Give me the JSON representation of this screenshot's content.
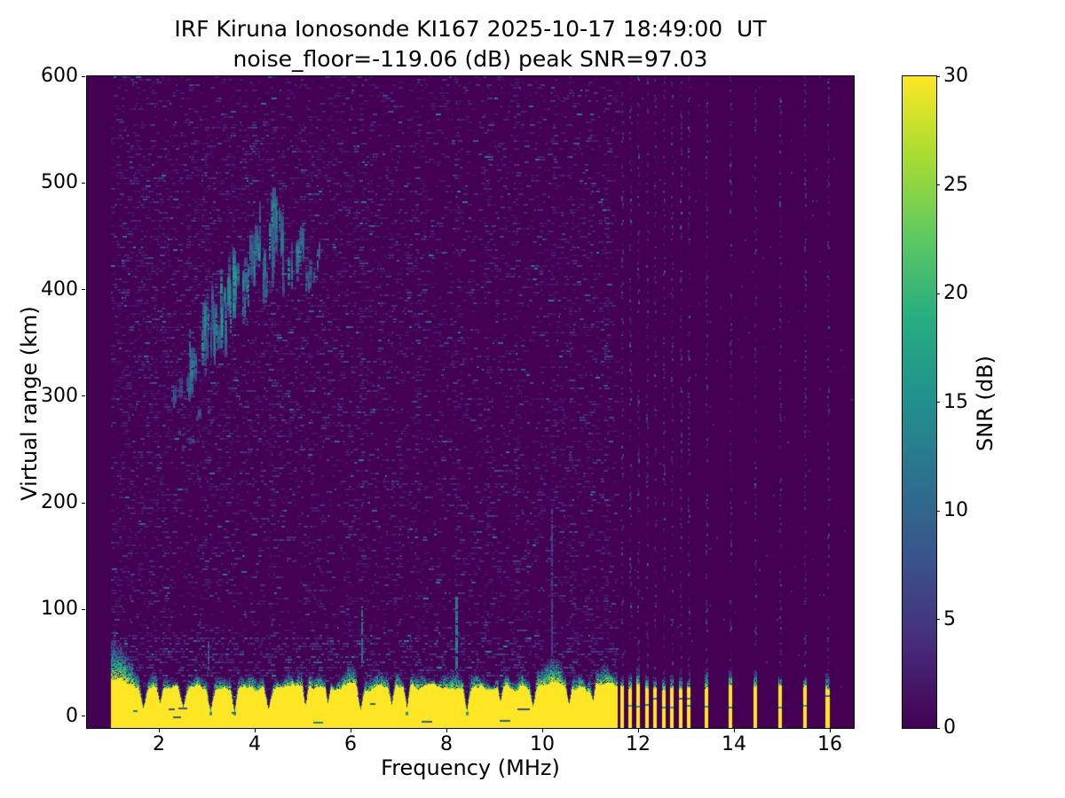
{
  "chart_data": {
    "type": "heatmap",
    "title_line1": "IRF Kiruna Ionosonde KI167 2025-10-17 18:49:00  UT",
    "title_line2": "noise_floor=-119.06 (dB) peak SNR=97.03",
    "xlabel": "Frequency (MHz)",
    "ylabel": "Virtual range (km)",
    "colorbar_label": "SNR (dB)",
    "colormap": "viridis",
    "x_ticks": [
      2,
      4,
      6,
      8,
      10,
      12,
      14,
      16
    ],
    "y_ticks": [
      0,
      100,
      200,
      300,
      400,
      500,
      600
    ],
    "colorbar_ticks": [
      0,
      5,
      10,
      15,
      20,
      25,
      30
    ],
    "xlim": [
      0.5,
      16.5
    ],
    "ylim": [
      -11.2,
      600
    ],
    "clim": [
      0,
      30
    ],
    "noise_floor_db": -119.06,
    "peak_snr_db": 97.03,
    "render_seed": 1337,
    "features": {
      "sweep_start_mhz": 1.0,
      "continuous_sweep_end_mhz": 11.55,
      "ground_band": {
        "yellow_top_km": 27,
        "grad_thickness_km": 10,
        "bumps": [
          {
            "f": 1.12,
            "amp": 20,
            "sig": 0.25
          },
          {
            "f": 5.95,
            "amp": 8,
            "sig": 0.14
          },
          {
            "f": 8.2,
            "amp": 6,
            "sig": 0.09
          },
          {
            "f": 10.1,
            "amp": 11,
            "sig": 0.25
          },
          {
            "f": 11.35,
            "amp": 8,
            "sig": 0.15
          }
        ]
      },
      "band_notches": [
        {
          "f": 1.67,
          "w": 0.13,
          "depth": 6,
          "tip": false
        },
        {
          "f": 2.02,
          "w": 0.1,
          "depth": 12,
          "tip": false
        },
        {
          "f": 2.5,
          "w": 0.14,
          "depth": 8,
          "tip": false
        },
        {
          "f": 3.07,
          "w": 0.12,
          "depth": 4,
          "tip": true
        },
        {
          "f": 3.57,
          "w": 0.11,
          "depth": 3,
          "tip": true
        },
        {
          "f": 4.28,
          "w": 0.14,
          "depth": 6,
          "tip": false
        },
        {
          "f": 5.05,
          "w": 0.1,
          "depth": 9,
          "tip": false
        },
        {
          "f": 5.52,
          "w": 0.08,
          "depth": 12,
          "tip": false
        },
        {
          "f": 6.2,
          "w": 0.12,
          "depth": 5,
          "tip": false
        },
        {
          "f": 6.85,
          "w": 0.1,
          "depth": 10,
          "tip": false
        },
        {
          "f": 7.17,
          "w": 0.1,
          "depth": 7,
          "tip": true
        },
        {
          "f": 8.42,
          "w": 0.12,
          "depth": 4,
          "tip": true
        },
        {
          "f": 9.12,
          "w": 0.08,
          "depth": 12,
          "tip": false
        },
        {
          "f": 9.8,
          "w": 0.1,
          "depth": 8,
          "tip": false
        },
        {
          "f": 10.55,
          "w": 0.1,
          "depth": 10,
          "tip": false
        },
        {
          "f": 11.05,
          "w": 0.08,
          "depth": 13,
          "tip": false
        }
      ],
      "echo_trace_segments": [
        {
          "f0": 2.15,
          "f1": 2.62,
          "r0": 288,
          "r1": 318,
          "n": 12,
          "v0": 6,
          "v1": 12,
          "h0": 6,
          "h1": 20
        },
        {
          "f0": 2.62,
          "f1": 3.12,
          "r0": 306,
          "r1": 398,
          "n": 20,
          "v0": 8,
          "v1": 17,
          "h0": 14,
          "h1": 48
        },
        {
          "f0": 3.12,
          "f1": 3.6,
          "r0": 338,
          "r1": 430,
          "n": 20,
          "v0": 9,
          "v1": 18,
          "h0": 14,
          "h1": 55
        },
        {
          "f0": 3.72,
          "f1": 4.12,
          "r0": 372,
          "r1": 470,
          "n": 18,
          "v0": 8,
          "v1": 18,
          "h0": 14,
          "h1": 45
        },
        {
          "f0": 4.12,
          "f1": 4.58,
          "r0": 388,
          "r1": 498,
          "n": 20,
          "v0": 9,
          "v1": 18,
          "h0": 16,
          "h1": 55
        },
        {
          "f0": 4.58,
          "f1": 5.02,
          "r0": 392,
          "r1": 462,
          "n": 14,
          "v0": 8,
          "v1": 15,
          "h0": 10,
          "h1": 35
        },
        {
          "f0": 5.02,
          "f1": 5.42,
          "r0": 398,
          "r1": 442,
          "n": 9,
          "v0": 7,
          "v1": 13,
          "h0": 7,
          "h1": 25
        },
        {
          "f0": 2.2,
          "f1": 3.05,
          "r0": 238,
          "r1": 298,
          "n": 7,
          "v0": 5,
          "v1": 9,
          "h0": 3,
          "h1": 10
        }
      ],
      "spikes": [
        {
          "f": 6.22,
          "r0": 48,
          "r1": 103,
          "v": 13,
          "w": 2
        },
        {
          "f": 8.19,
          "r0": 42,
          "r1": 112,
          "v": 14,
          "w": 3
        },
        {
          "f": 10.18,
          "r0": 55,
          "r1": 195,
          "v": 6,
          "w": 2
        },
        {
          "f": 3.02,
          "r0": 45,
          "r1": 70,
          "v": 10,
          "w": 2
        }
      ],
      "sparse_stripes_mhz": [
        11.66,
        11.83,
        12.0,
        12.18,
        12.36,
        12.54,
        12.71,
        12.88,
        13.05,
        13.43,
        13.92,
        14.44,
        14.96,
        15.48,
        15.96
      ],
      "noise_column_boost_mhz": [
        2.9,
        3.5,
        4.3,
        5.15,
        6.2,
        7.0,
        7.35,
        8.2,
        8.8,
        9.4,
        10.2,
        10.6,
        11.0,
        11.3
      ]
    },
    "colors": {
      "background_low": "#440154",
      "peak_high": "#fde725",
      "axis": "#000000",
      "figure_bg": "#ffffff"
    }
  }
}
